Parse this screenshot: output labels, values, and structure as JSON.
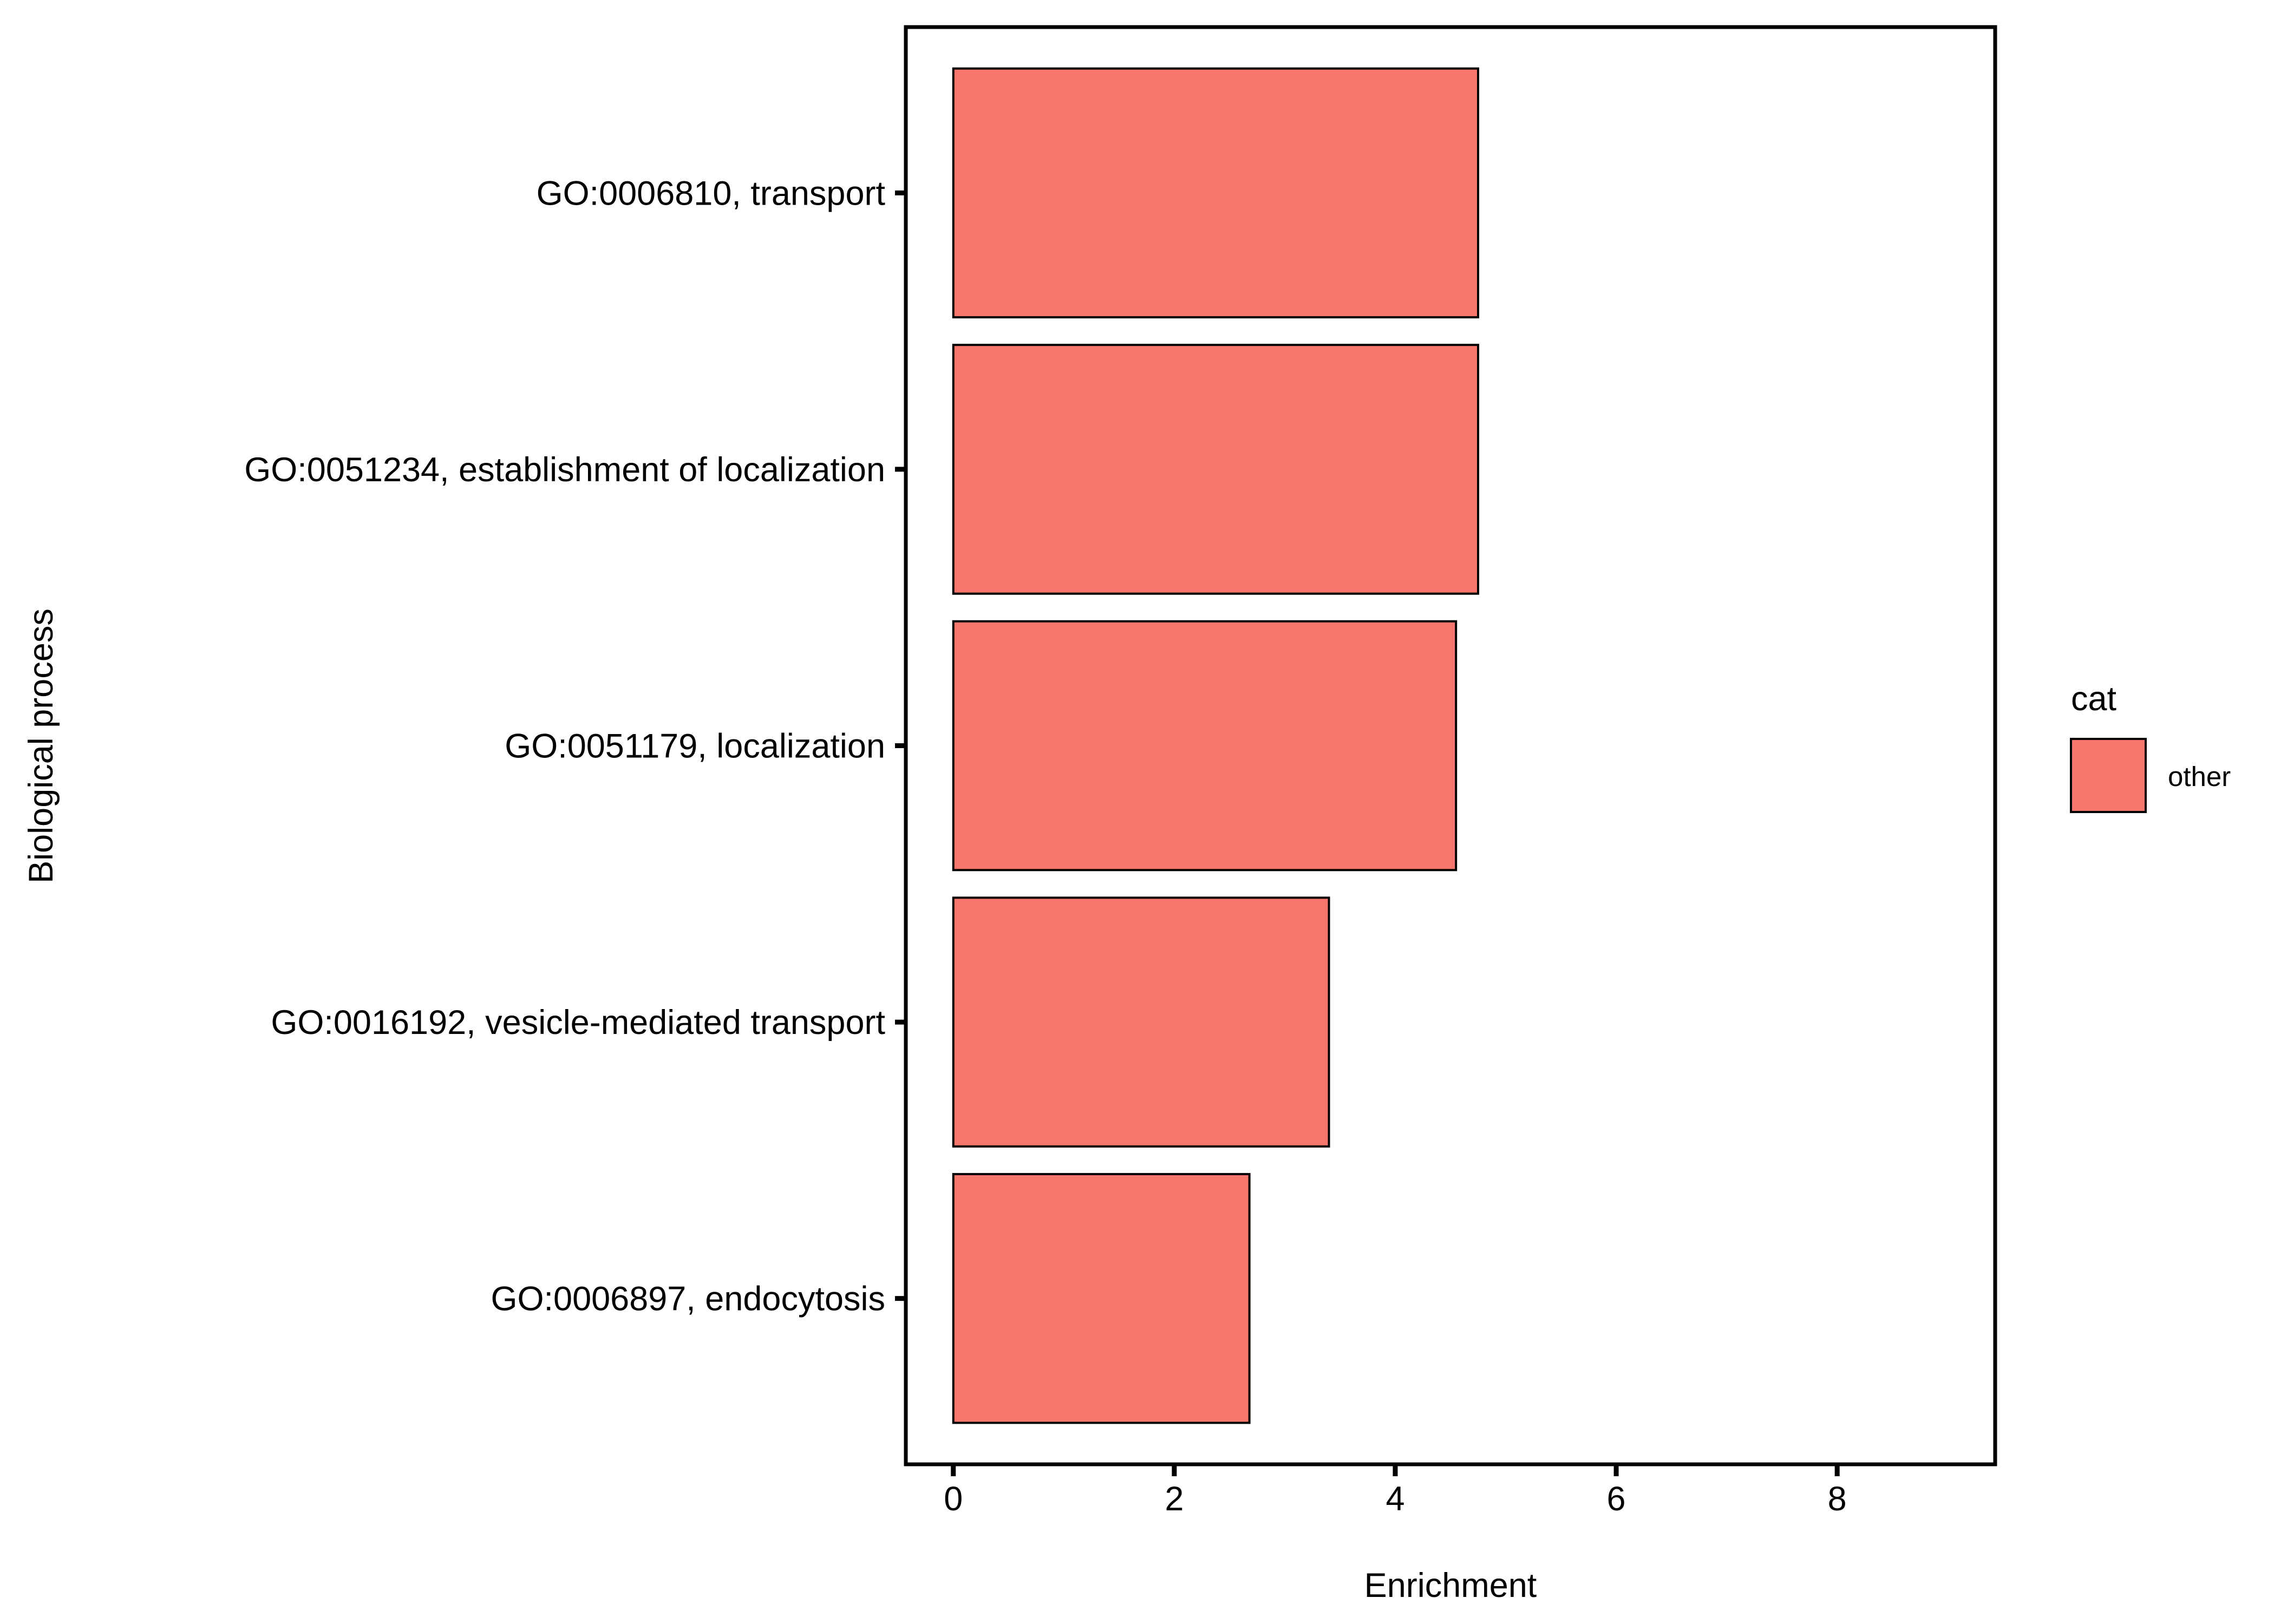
{
  "chart_data": {
    "type": "bar",
    "orientation": "horizontal",
    "categories": [
      "GO:0006810, transport",
      "GO:0051234, establishment of localization",
      "GO:0051179, localization",
      "GO:0016192, vesicle-mediated transport",
      "GO:0006897, endocytosis"
    ],
    "series": [
      {
        "name": "other",
        "values": [
          4.75,
          4.75,
          4.55,
          3.4,
          2.68
        ]
      }
    ],
    "xlabel": "Enrichment",
    "ylabel": "Biological process",
    "xlim": [
      -0.43,
      9.43
    ],
    "xticks": [
      0,
      2,
      4,
      6,
      8
    ],
    "xtick_labels": [
      "0",
      "2",
      "4",
      "6",
      "8"
    ],
    "grid": false,
    "legend": {
      "title": "cat",
      "placement": "right",
      "entries": [
        "other"
      ]
    },
    "colors": {
      "bar_fill": "#F8766D",
      "bar_stroke": "#000000",
      "panel_border": "#000000",
      "background": "#FFFFFF"
    }
  }
}
